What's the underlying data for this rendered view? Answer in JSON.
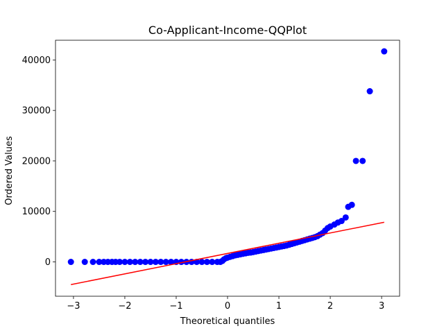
{
  "chart_data": {
    "type": "scatter",
    "title": "Co-Applicant-Income-QQPlot",
    "xlabel": "Theoretical quantiles",
    "ylabel": "Ordered Values",
    "xlim": [
      -3.35,
      3.35
    ],
    "ylim": [
      -6800,
      43900
    ],
    "xticks": [
      -3,
      -2,
      -1,
      0,
      1,
      2,
      3
    ],
    "xtick_labels": [
      "−3",
      "−2",
      "−1",
      "0",
      "1",
      "2",
      "3"
    ],
    "yticks": [
      0,
      10000,
      20000,
      30000,
      40000
    ],
    "ytick_labels": [
      "0",
      "10000",
      "20000",
      "30000",
      "40000"
    ],
    "grid": false,
    "series": [
      {
        "type": "scatter",
        "color": "#0000ff",
        "points": [
          [
            -3.05,
            0
          ],
          [
            -2.78,
            0
          ],
          [
            -2.62,
            0
          ],
          [
            -2.5,
            0
          ],
          [
            -2.41,
            0
          ],
          [
            -2.33,
            0
          ],
          [
            -2.25,
            0
          ],
          [
            -2.18,
            0
          ],
          [
            -2.1,
            0
          ],
          [
            -2.0,
            0
          ],
          [
            -1.9,
            0
          ],
          [
            -1.8,
            0
          ],
          [
            -1.7,
            0
          ],
          [
            -1.6,
            0
          ],
          [
            -1.5,
            0
          ],
          [
            -1.4,
            0
          ],
          [
            -1.3,
            0
          ],
          [
            -1.2,
            0
          ],
          [
            -1.1,
            0
          ],
          [
            -1.0,
            0
          ],
          [
            -0.9,
            0
          ],
          [
            -0.8,
            0
          ],
          [
            -0.7,
            0
          ],
          [
            -0.6,
            0
          ],
          [
            -0.5,
            0
          ],
          [
            -0.4,
            0
          ],
          [
            -0.3,
            0
          ],
          [
            -0.2,
            0
          ],
          [
            -0.14,
            0
          ],
          [
            -0.1,
            200
          ],
          [
            -0.07,
            500
          ],
          [
            -0.03,
            750
          ],
          [
            0.0,
            850
          ],
          [
            0.05,
            1000
          ],
          [
            0.1,
            1150
          ],
          [
            0.15,
            1300
          ],
          [
            0.2,
            1400
          ],
          [
            0.25,
            1500
          ],
          [
            0.3,
            1600
          ],
          [
            0.35,
            1700
          ],
          [
            0.4,
            1800
          ],
          [
            0.45,
            1850
          ],
          [
            0.5,
            1950
          ],
          [
            0.55,
            2050
          ],
          [
            0.6,
            2150
          ],
          [
            0.65,
            2250
          ],
          [
            0.7,
            2350
          ],
          [
            0.75,
            2450
          ],
          [
            0.8,
            2550
          ],
          [
            0.85,
            2650
          ],
          [
            0.9,
            2750
          ],
          [
            0.95,
            2850
          ],
          [
            1.0,
            2950
          ],
          [
            1.05,
            3050
          ],
          [
            1.1,
            3150
          ],
          [
            1.15,
            3250
          ],
          [
            1.2,
            3400
          ],
          [
            1.25,
            3550
          ],
          [
            1.3,
            3700
          ],
          [
            1.35,
            3850
          ],
          [
            1.4,
            4000
          ],
          [
            1.45,
            4150
          ],
          [
            1.5,
            4300
          ],
          [
            1.55,
            4450
          ],
          [
            1.6,
            4600
          ],
          [
            1.65,
            4750
          ],
          [
            1.7,
            4900
          ],
          [
            1.75,
            5100
          ],
          [
            1.8,
            5400
          ],
          [
            1.85,
            5700
          ],
          [
            1.9,
            6200
          ],
          [
            1.95,
            6700
          ],
          [
            2.0,
            7000
          ],
          [
            2.08,
            7400
          ],
          [
            2.15,
            7800
          ],
          [
            2.22,
            8100
          ],
          [
            2.3,
            8800
          ],
          [
            2.35,
            10900
          ],
          [
            2.42,
            11300
          ],
          [
            2.5,
            20000
          ],
          [
            2.63,
            20000
          ],
          [
            2.77,
            33800
          ],
          [
            3.05,
            41700
          ]
        ]
      },
      {
        "type": "line",
        "color": "#ff0000",
        "points": [
          [
            -3.05,
            -4500
          ],
          [
            3.05,
            7850
          ]
        ]
      }
    ]
  }
}
